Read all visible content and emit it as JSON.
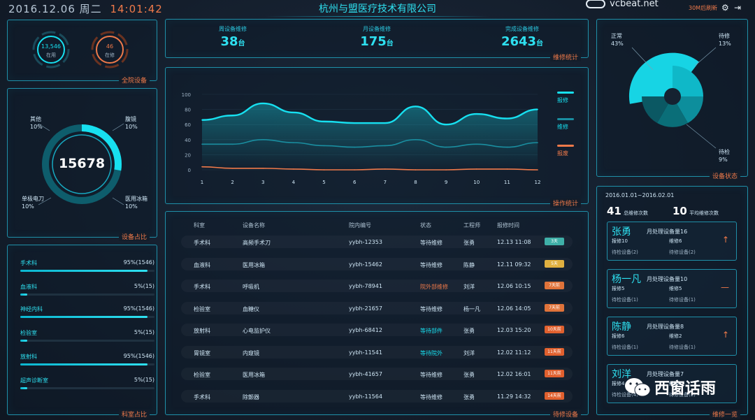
{
  "header": {
    "date": "2016.12.06",
    "weekday": "周二",
    "clock": "14:01:42",
    "title": "杭州与盟医疗技术有限公司",
    "logo_text": "vcbeat.net",
    "refresh": "30M后刷新"
  },
  "hospital_devices": {
    "title": "全院设备",
    "in_use_value": "13,546",
    "in_use_label": "在用",
    "repairing_value": "46",
    "repairing_label": "在修"
  },
  "stats": {
    "title": "维修统计",
    "items": [
      {
        "label": "周设备维修",
        "value": "38",
        "unit": "台"
      },
      {
        "label": "月设备维修",
        "value": "175",
        "unit": "台"
      },
      {
        "label": "完成设备维修",
        "value": "2643",
        "unit": "台"
      }
    ]
  },
  "device_share": {
    "title": "设备占比",
    "total": "15678",
    "labels": [
      {
        "name": "其他",
        "pct": "10%"
      },
      {
        "name": "腹镜",
        "pct": "10%"
      },
      {
        "name": "单极电刀",
        "pct": "10%"
      },
      {
        "name": "医用冰箱",
        "pct": "10%"
      }
    ]
  },
  "operation_chart": {
    "title": "操作统计",
    "legend": [
      "报修",
      "维修",
      "报废"
    ],
    "colors": {
      "report": "#17e0f0",
      "repair": "#1a8ea0",
      "scrap": "#f07a4a"
    }
  },
  "chart_data": {
    "type": "line",
    "x": [
      1,
      2,
      3,
      4,
      5,
      6,
      7,
      8,
      9,
      10,
      11,
      12
    ],
    "ylim": [
      0,
      100
    ],
    "yticks": [
      0,
      20,
      40,
      60,
      80,
      100
    ],
    "series": [
      {
        "name": "报修",
        "values": [
          66,
          72,
          88,
          76,
          64,
          62,
          62,
          84,
          60,
          74,
          68,
          80
        ]
      },
      {
        "name": "维修",
        "values": [
          34,
          34,
          40,
          36,
          32,
          30,
          32,
          40,
          30,
          34,
          30,
          36
        ]
      },
      {
        "name": "报废",
        "values": [
          4,
          2,
          2,
          1,
          0,
          0,
          1,
          0,
          0,
          1,
          1,
          0
        ]
      }
    ]
  },
  "dept_share": {
    "title": "科室占比",
    "items": [
      {
        "name": "手术科",
        "pct": "95%(1546)",
        "fill": 0.95
      },
      {
        "name": "血液科",
        "pct": "5%(15)",
        "fill": 0.05
      },
      {
        "name": "神经内科",
        "pct": "95%(1546)",
        "fill": 0.95
      },
      {
        "name": "检验室",
        "pct": "5%(15)",
        "fill": 0.05
      },
      {
        "name": "放射科",
        "pct": "95%(1546)",
        "fill": 0.95
      },
      {
        "name": "超声诊断室",
        "pct": "5%(15)",
        "fill": 0.05
      }
    ]
  },
  "pending": {
    "title": "待修设备",
    "headers": [
      "科室",
      "设备名称",
      "院内编号",
      "状态",
      "工程师",
      "报修时间"
    ],
    "rows": [
      {
        "dept": "手术科",
        "name": "高频手术刀",
        "code": "yybh-12353",
        "status": "等待维修",
        "eng": "张勇",
        "time": "12.13  11:08",
        "badge": "3天",
        "badge_color": "#3fb0a8"
      },
      {
        "dept": "血液科",
        "name": "医用冰箱",
        "code": "yybh-15462",
        "status": "等待维修",
        "eng": "陈静",
        "time": "12.11  09:32",
        "badge": "5天",
        "badge_color": "#e0b040"
      },
      {
        "dept": "手术科",
        "name": "呼吸机",
        "code": "yybh-78941",
        "status": "院外部维修",
        "eng": "刘洋",
        "time": "12.06  10:15",
        "badge": "7天前",
        "badge_color": "#e0733a"
      },
      {
        "dept": "检验室",
        "name": "血糖仪",
        "code": "yybh-21657",
        "status": "等待维修",
        "eng": "杨一凡",
        "time": "12.06  14:05",
        "badge": "7天前",
        "badge_color": "#e0733a"
      },
      {
        "dept": "放射科",
        "name": "心电监护仪",
        "code": "yybh-68412",
        "status": "等待部件",
        "eng": "张勇",
        "time": "12.03  15:20",
        "badge": "10天前",
        "badge_color": "#e0602e"
      },
      {
        "dept": "胃镜室",
        "name": "内窥镜",
        "code": "yybh-11541",
        "status": "等待院外",
        "eng": "刘洋",
        "time": "12.02  11:12",
        "badge": "11天前",
        "badge_color": "#e0602e"
      },
      {
        "dept": "检验室",
        "name": "医用冰箱",
        "code": "yybh-41657",
        "status": "等待维修",
        "eng": "张勇",
        "time": "12.02  16:01",
        "badge": "11天前",
        "badge_color": "#e0602e"
      },
      {
        "dept": "手术科",
        "name": "除颤器",
        "code": "yybh-11564",
        "status": "等待维修",
        "eng": "张勇",
        "time": "11.29  14:32",
        "badge": "14天前",
        "badge_color": "#e0602e"
      }
    ]
  },
  "device_status": {
    "title": "设备状态",
    "labels": [
      {
        "name": "正常",
        "pct": "43%"
      },
      {
        "name": "待修",
        "pct": "13%"
      },
      {
        "name": "待检",
        "pct": "9%"
      }
    ]
  },
  "repair_list": {
    "title": "维修一览",
    "range": "2016.01.01~2016.02.01",
    "total_count": "41",
    "total_label": "总维修次数",
    "avg_count": "10",
    "avg_label": "平均维修次数",
    "engineers": [
      {
        "name": "张勇",
        "title": "月处理设备量16",
        "a": "报修10",
        "b": "维修6",
        "c": "待检设备(2)",
        "d": "待修设备(2)",
        "arrow": "↑"
      },
      {
        "name": "杨一凡",
        "title": "月处理设备量10",
        "a": "报修5",
        "b": "维修5",
        "c": "待检设备(1)",
        "d": "待修设备(1)",
        "arrow": "—"
      },
      {
        "name": "陈静",
        "title": "月处理设备量8",
        "a": "报修6",
        "b": "维修2",
        "c": "待检设备(1)",
        "d": "待修设备(1)",
        "arrow": "↑"
      },
      {
        "name": "刘洋",
        "title": "月处理设备量7",
        "a": "报修4",
        "b": "维修3",
        "c": "待检设备(4)",
        "d": "待修设备(2)",
        "arrow": ""
      }
    ]
  },
  "watermark": "西窗话雨"
}
